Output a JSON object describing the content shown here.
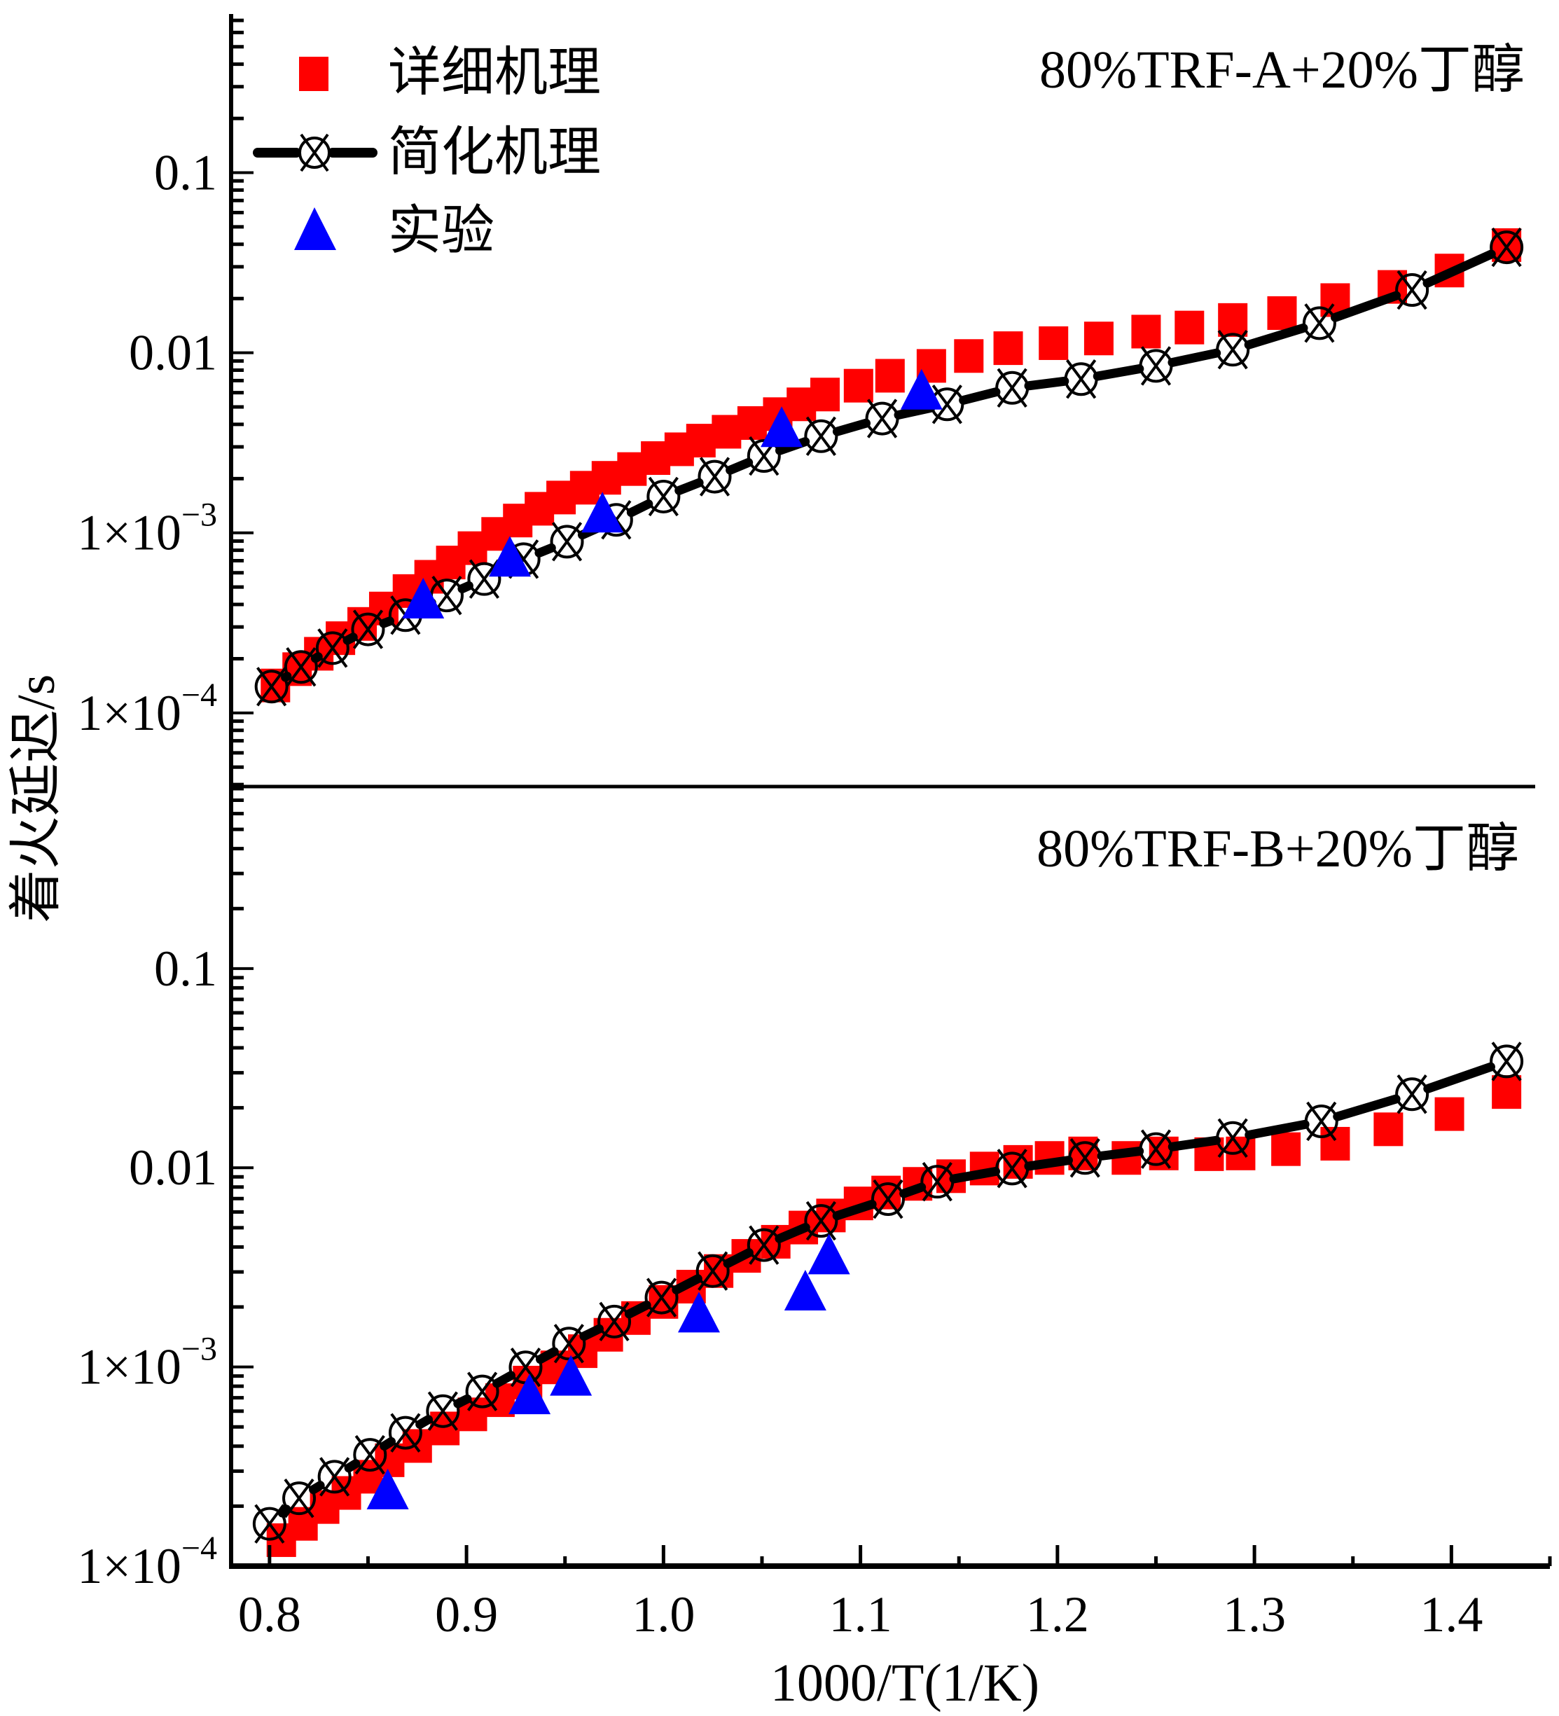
{
  "chart_data": {
    "type": "scatter",
    "title": "",
    "xlabel": "1000/T(1/K)",
    "ylabel": "着火延迟/s",
    "xlim": [
      0.7805,
      1.45
    ],
    "x_ticks": [
      {
        "value": 0.8,
        "label": "0.8"
      },
      {
        "value": 0.9,
        "label": "0.9"
      },
      {
        "value": 1.0,
        "label": "1.0"
      },
      {
        "value": 1.1,
        "label": "1.1"
      },
      {
        "value": 1.2,
        "label": "1.2"
      },
      {
        "value": 1.3,
        "label": "1.3"
      },
      {
        "value": 1.4,
        "label": "1.4"
      }
    ],
    "x_minor_step": 0.05,
    "yscale": "log",
    "grid": false,
    "legend": {
      "position": "top-left",
      "entries": [
        {
          "label": "详细机理",
          "marker": "square",
          "color": "#ff0000"
        },
        {
          "label": "简化机理",
          "marker": "circle-x-line",
          "color": "#000000"
        },
        {
          "label": "实验",
          "marker": "triangle",
          "color": "#0000ff"
        }
      ]
    },
    "panels": [
      {
        "annotation": "80%TRF-A+20%丁醇",
        "ylim": [
          3.9e-05,
          0.76
        ],
        "y_ticks": [
          {
            "value": 0.1,
            "label": "0.1",
            "exp": ""
          },
          {
            "value": 0.01,
            "label": "0.01",
            "exp": ""
          },
          {
            "value": 0.001,
            "label": "1×10",
            "exp": "−3"
          },
          {
            "value": 0.0001,
            "label": "1×10",
            "exp": "−4"
          }
        ],
        "series": [
          {
            "name": "详细机理",
            "marker": "square",
            "color": "#ff0000",
            "points": [
              [
                0.803,
                0.000142
              ],
              [
                0.814,
                0.000175
              ],
              [
                0.825,
                0.000213
              ],
              [
                0.836,
                0.00026
              ],
              [
                0.847,
                0.000312
              ],
              [
                0.858,
                0.00038
              ],
              [
                0.87,
                0.000475
              ],
              [
                0.881,
                0.00057
              ],
              [
                0.892,
                0.000684
              ],
              [
                0.903,
                0.000822
              ],
              [
                0.915,
                0.000986
              ],
              [
                0.926,
                0.00117
              ],
              [
                0.937,
                0.00136
              ],
              [
                0.948,
                0.00157
              ],
              [
                0.96,
                0.00178
              ],
              [
                0.971,
                0.00202
              ],
              [
                0.984,
                0.00226
              ],
              [
                0.996,
                0.0026
              ],
              [
                1.008,
                0.00291
              ],
              [
                1.019,
                0.00325
              ],
              [
                1.032,
                0.00364
              ],
              [
                1.045,
                0.00407
              ],
              [
                1.058,
                0.00456
              ],
              [
                1.07,
                0.00517
              ],
              [
                1.082,
                0.00586
              ],
              [
                1.099,
                0.00656
              ],
              [
                1.115,
                0.00745
              ],
              [
                1.136,
                0.00845
              ],
              [
                1.155,
                0.00959
              ],
              [
                1.175,
                0.0106
              ],
              [
                1.198,
                0.0113
              ],
              [
                1.221,
                0.012
              ],
              [
                1.245,
                0.0131
              ],
              [
                1.267,
                0.0138
              ],
              [
                1.289,
                0.0152
              ],
              [
                1.314,
                0.0166
              ],
              [
                1.341,
                0.0196
              ],
              [
                1.37,
                0.0232
              ],
              [
                1.399,
                0.0286
              ],
              [
                1.428,
                0.0396
              ]
            ]
          },
          {
            "name": "简化机理",
            "marker": "circle-x-line",
            "color": "#000000",
            "points": [
              [
                0.801,
                0.00014
              ],
              [
                0.816,
                0.00018
              ],
              [
                0.832,
                0.000229
              ],
              [
                0.85,
                0.000291
              ],
              [
                0.869,
                0.000349
              ],
              [
                0.89,
                0.000449
              ],
              [
                0.909,
                0.000554
              ],
              [
                0.929,
                0.000714
              ],
              [
                0.951,
                0.000893
              ],
              [
                0.976,
                0.00118
              ],
              [
                1.0,
                0.00159
              ],
              [
                1.026,
                0.00205
              ],
              [
                1.051,
                0.00267
              ],
              [
                1.08,
                0.00344
              ],
              [
                1.111,
                0.00431
              ],
              [
                1.144,
                0.00517
              ],
              [
                1.177,
                0.00638
              ],
              [
                1.212,
                0.00714
              ],
              [
                1.25,
                0.00845
              ],
              [
                1.289,
                0.0104
              ],
              [
                1.333,
                0.0146
              ],
              [
                1.38,
                0.0223
              ],
              [
                1.428,
                0.0385
              ]
            ]
          },
          {
            "name": "实验",
            "marker": "triangle",
            "color": "#0000ff",
            "points": [
              [
                0.878,
                0.00043
              ],
              [
                0.922,
                0.000734
              ],
              [
                0.969,
                0.00129
              ],
              [
                1.06,
                0.00385
              ],
              [
                1.131,
                0.00621
              ]
            ]
          }
        ]
      },
      {
        "annotation": "80%TRF-B+20%丁醇",
        "ylim": [
          0.0001,
          0.82
        ],
        "y_ticks": [
          {
            "value": 0.1,
            "label": "0.1",
            "exp": ""
          },
          {
            "value": 0.01,
            "label": "0.01",
            "exp": ""
          },
          {
            "value": 0.001,
            "label": "1×10",
            "exp": "−3"
          },
          {
            "value": 0.0001,
            "label": "1×10",
            "exp": "−4"
          }
        ],
        "series": [
          {
            "name": "详细机理",
            "marker": "square",
            "color": "#ff0000",
            "points": [
              [
                0.806,
                0.000135
              ],
              [
                0.817,
                0.000163
              ],
              [
                0.828,
                0.000198
              ],
              [
                0.839,
                0.000233
              ],
              [
                0.85,
                0.000281
              ],
              [
                0.861,
                0.00034
              ],
              [
                0.875,
                0.000401
              ],
              [
                0.889,
                0.000491
              ],
              [
                0.903,
                0.000578
              ],
              [
                0.917,
                0.000681
              ],
              [
                0.931,
                0.000834
              ],
              [
                0.945,
                0.000995
              ],
              [
                0.959,
                0.0012
              ],
              [
                0.972,
                0.00145
              ],
              [
                0.986,
                0.00176
              ],
              [
                1.0,
                0.00212
              ],
              [
                1.014,
                0.00253
              ],
              [
                1.028,
                0.00303
              ],
              [
                1.042,
                0.00361
              ],
              [
                1.057,
                0.00425
              ],
              [
                1.071,
                0.00501
              ],
              [
                1.085,
                0.00576
              ],
              [
                1.099,
                0.00662
              ],
              [
                1.113,
                0.00751
              ],
              [
                1.129,
                0.0083
              ],
              [
                1.146,
                0.00907
              ],
              [
                1.163,
                0.00991
              ],
              [
                1.18,
                0.0107
              ],
              [
                1.196,
                0.0112
              ],
              [
                1.213,
                0.0118
              ],
              [
                1.235,
                0.0112
              ],
              [
                1.254,
                0.0118
              ],
              [
                1.277,
                0.0117
              ],
              [
                1.293,
                0.0118
              ],
              [
                1.316,
                0.0124
              ],
              [
                1.341,
                0.0132
              ],
              [
                1.368,
                0.0156
              ],
              [
                1.399,
                0.0186
              ],
              [
                1.428,
                0.024
              ]
            ]
          },
          {
            "name": "简化机理",
            "marker": "circle-x-line",
            "color": "#000000",
            "points": [
              [
                0.8,
                0.000163
              ],
              [
                0.815,
                0.000219
              ],
              [
                0.833,
                0.000281
              ],
              [
                0.851,
                0.000362
              ],
              [
                0.869,
                0.000467
              ],
              [
                0.888,
                0.0006
              ],
              [
                0.908,
                0.000753
              ],
              [
                0.93,
                0.000995
              ],
              [
                0.952,
                0.00131
              ],
              [
                0.975,
                0.00169
              ],
              [
                0.999,
                0.00223
              ],
              [
                1.025,
                0.00303
              ],
              [
                1.051,
                0.00409
              ],
              [
                1.08,
                0.00541
              ],
              [
                1.114,
                0.00696
              ],
              [
                1.139,
                0.00851
              ],
              [
                1.177,
                0.00991
              ],
              [
                1.214,
                0.0112
              ],
              [
                1.25,
                0.0124
              ],
              [
                1.289,
                0.0141
              ],
              [
                1.334,
                0.0171
              ],
              [
                1.38,
                0.0234
              ],
              [
                1.428,
                0.0342
              ]
            ]
          },
          {
            "name": "实验",
            "marker": "triangle",
            "color": "#0000ff",
            "points": [
              [
                0.86,
                0.000242
              ],
              [
                0.932,
                0.000726
              ],
              [
                0.953,
                0.0009
              ],
              [
                1.018,
                0.00187
              ],
              [
                1.072,
                0.00241
              ],
              [
                1.084,
                0.00366
              ]
            ]
          }
        ]
      }
    ]
  }
}
